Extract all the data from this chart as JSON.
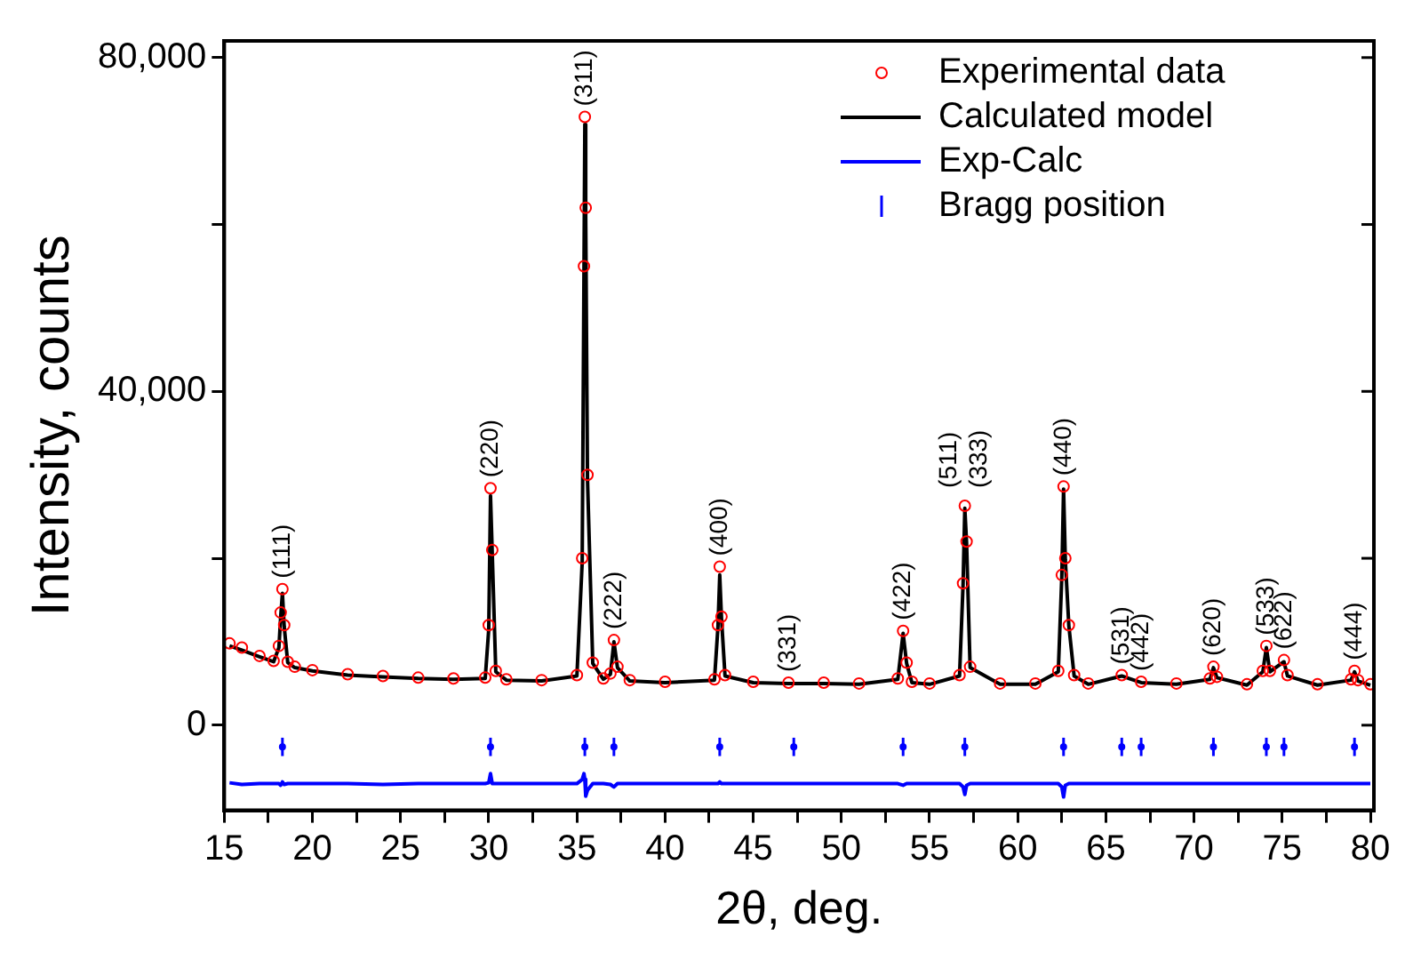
{
  "chart_data": {
    "type": "scatter",
    "xlabel": "2θ, deg.",
    "ylabel": "Intensity, counts",
    "xlim": [
      15,
      80.2
    ],
    "ylim": [
      -10200,
      82000
    ],
    "xticks": [
      15,
      {
        "value": 17.5,
        "label": null
      },
      20,
      {
        "value": 22.5,
        "label": null
      },
      25,
      {
        "value": 27.5,
        "label": null
      },
      30,
      {
        "value": 32.5,
        "label": null
      },
      35,
      {
        "value": 37.5,
        "label": null
      },
      40,
      {
        "value": 42.5,
        "label": null
      },
      45,
      {
        "value": 47.5,
        "label": null
      },
      50,
      {
        "value": 52.5,
        "label": null
      },
      55,
      {
        "value": 57.5,
        "label": null
      },
      60,
      {
        "value": 62.5,
        "label": null
      },
      65,
      {
        "value": 67.5,
        "label": null
      },
      70,
      {
        "value": 72.5,
        "label": null
      },
      75,
      {
        "value": 77.5,
        "label": null
      },
      80
    ],
    "yticks": [
      0,
      {
        "value": 20000,
        "label": null
      },
      {
        "value": 40000,
        "label": "40,000"
      },
      {
        "value": 60000,
        "label": null
      },
      {
        "value": 80000,
        "label": "80,000"
      }
    ],
    "x": [
      15.3,
      16,
      17,
      17.8,
      18.1,
      18.2,
      18.3,
      18.4,
      18.6,
      19,
      20,
      22,
      24,
      26,
      28,
      29.8,
      30.0,
      30.1,
      30.2,
      30.4,
      31,
      33,
      35.0,
      35.3,
      35.4,
      35.45,
      35.5,
      35.6,
      35.9,
      36.5,
      36.9,
      37.1,
      37.3,
      38,
      40,
      42.8,
      43.0,
      43.1,
      43.2,
      43.4,
      45,
      47,
      49,
      51,
      53.2,
      53.5,
      53.7,
      54,
      55,
      56.7,
      56.9,
      57.0,
      57.1,
      57.3,
      59,
      61,
      62.3,
      62.5,
      62.6,
      62.7,
      62.9,
      63.2,
      64,
      65.9,
      67,
      69,
      70.9,
      71.1,
      71.3,
      73,
      73.9,
      74.1,
      74.3,
      75.1,
      75.3,
      77,
      78.9,
      79.1,
      79.3,
      80
    ],
    "series": [
      {
        "name": "Experimental data",
        "type": "scatter",
        "marker": "circle",
        "color": "#ff0000",
        "values": [
          9800,
          9300,
          8300,
          7700,
          9500,
          13500,
          16300,
          12000,
          7600,
          7000,
          6600,
          6100,
          5900,
          5700,
          5600,
          5700,
          12000,
          28400,
          21000,
          6500,
          5500,
          5400,
          6000,
          20000,
          55000,
          72900,
          62000,
          30000,
          7500,
          5600,
          6200,
          10200,
          7000,
          5400,
          5200,
          5500,
          12000,
          19000,
          13000,
          6000,
          5200,
          5100,
          5100,
          5000,
          5600,
          11300,
          7500,
          5200,
          5000,
          6000,
          17000,
          26300,
          22000,
          7000,
          5000,
          5000,
          6500,
          18000,
          28600,
          20000,
          12000,
          6000,
          5000,
          6000,
          5200,
          5000,
          5600,
          7000,
          5800,
          4900,
          6500,
          9500,
          6500,
          7800,
          6000,
          4900,
          5500,
          6500,
          5400,
          4900
        ]
      },
      {
        "name": "Calculated model",
        "type": "line",
        "marker": "none",
        "color": "#000000",
        "values": [
          9500,
          9000,
          8200,
          7600,
          9300,
          13000,
          15800,
          11800,
          7500,
          6900,
          6500,
          6000,
          5800,
          5600,
          5500,
          5600,
          11500,
          27500,
          20500,
          6400,
          5400,
          5300,
          5900,
          19500,
          54000,
          72000,
          61000,
          29500,
          7400,
          5500,
          6100,
          10000,
          6900,
          5300,
          5100,
          5400,
          11800,
          18000,
          12800,
          5900,
          5100,
          5000,
          5000,
          4900,
          5500,
          11000,
          7400,
          5100,
          4900,
          5900,
          16800,
          26000,
          21800,
          6900,
          4900,
          4900,
          6400,
          17800,
          28300,
          19800,
          11900,
          5900,
          4900,
          5900,
          5100,
          4900,
          5500,
          6900,
          5700,
          4800,
          6400,
          9300,
          6400,
          7600,
          5900,
          4800,
          5400,
          6400,
          5300,
          4800
        ]
      },
      {
        "name": "Exp-Calc",
        "type": "line",
        "marker": "none",
        "color": "#0000ff",
        "values": [
          -6900,
          -7100,
          -7000,
          -7000,
          -7000,
          -7200,
          -6800,
          -7100,
          -7000,
          -7000,
          -7000,
          -7000,
          -7100,
          -7000,
          -7000,
          -7000,
          -6900,
          -5800,
          -7000,
          -7000,
          -7000,
          -7000,
          -7000,
          -6500,
          -5800,
          -6500,
          -8500,
          -7800,
          -7000,
          -7000,
          -7100,
          -7400,
          -7000,
          -7000,
          -7000,
          -7000,
          -7000,
          -6800,
          -7000,
          -7000,
          -7000,
          -7000,
          -7000,
          -7000,
          -7000,
          -7200,
          -7000,
          -7000,
          -7000,
          -7000,
          -7400,
          -8300,
          -7200,
          -7000,
          -7000,
          -7000,
          -7000,
          -7400,
          -8600,
          -7200,
          -7000,
          -7000,
          -7000,
          -7000,
          -7000,
          -7000,
          -7000,
          -7000,
          -7000,
          -7000,
          -7000,
          -7000,
          -7000,
          -7000,
          -7000,
          -7000,
          -7000,
          -7000,
          -7000,
          -7000
        ]
      },
      {
        "name": "Bragg position",
        "type": "scatter",
        "color": "#0000ff",
        "x": [
          18.3,
          30.1,
          35.45,
          37.1,
          43.1,
          47.3,
          53.5,
          57.0,
          62.6,
          65.9,
          67.0,
          71.1,
          74.1,
          75.1,
          79.1
        ],
        "values": [
          -2600,
          -2600,
          -2600,
          -2600,
          -2600,
          -2600,
          -2600,
          -2600,
          -2600,
          -2600,
          -2600,
          -2600,
          -2600,
          -2600,
          -2600
        ],
        "errors": [
          1100,
          1100,
          1100,
          1100,
          1100,
          1100,
          1100,
          1100,
          1100,
          1100,
          1100,
          1100,
          1100,
          1100,
          1100
        ]
      }
    ],
    "annotations": [
      {
        "text": "(111)",
        "x": 18.3,
        "y": 16300
      },
      {
        "text": "(220)",
        "x": 30.1,
        "y": 28400
      },
      {
        "text": "(311)",
        "x": 35.45,
        "y": 72900
      },
      {
        "text": "(222)",
        "x": 37.1,
        "y": 10200
      },
      {
        "text": "(400)",
        "x": 43.1,
        "y": 19000
      },
      {
        "text": "(331)",
        "x": 47,
        "y": 5100
      },
      {
        "text": "(422)",
        "x": 53.5,
        "y": 11300
      },
      {
        "text": "(511)",
        "x": 57.0,
        "y": 26300
      },
      {
        "text": "(333)",
        "x": 57.0,
        "y": 26300
      },
      {
        "text": "(440)",
        "x": 62.6,
        "y": 28600
      },
      {
        "text": "(531)",
        "x": 65.9,
        "y": 6000
      },
      {
        "text": "(442)",
        "x": 67,
        "y": 5200
      },
      {
        "text": "(620)",
        "x": 71.1,
        "y": 7000
      },
      {
        "text": "(533)",
        "x": 74.1,
        "y": 9500
      },
      {
        "text": "(622)",
        "x": 75.1,
        "y": 7800
      },
      {
        "text": "(444)",
        "x": 79.1,
        "y": 6500
      }
    ],
    "legend": "top right",
    "grid": false
  }
}
